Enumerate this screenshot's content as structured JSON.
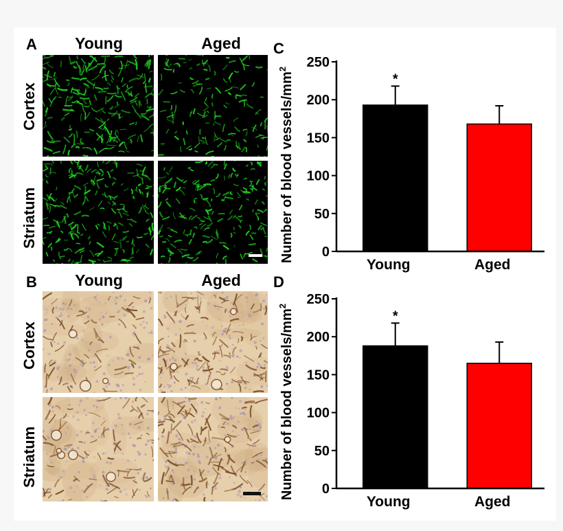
{
  "panels": {
    "a_letter": "A",
    "b_letter": "B",
    "c_letter": "C",
    "d_letter": "D"
  },
  "micrographs": {
    "col_young": "Young",
    "col_aged": "Aged",
    "row_cortex": "Cortex",
    "row_striatum": "Striatum",
    "fluor_color": "#1fd11f",
    "fluor_bg": "#000000",
    "stain_bg": "#e6cfab",
    "stain_vessel": "#7a4c26",
    "stain_nuclei": "#9f8fb0"
  },
  "chart_data": [
    {
      "type": "bar",
      "panel": "C",
      "categories": [
        "Young",
        "Aged"
      ],
      "values": [
        193,
        168
      ],
      "errors": [
        25,
        24
      ],
      "significance": [
        "*",
        ""
      ],
      "colors": [
        "#000000",
        "#ff0000"
      ],
      "ylabel": "Number of blood vessels/mm",
      "ylabel_sup": "2",
      "ylim": [
        0,
        250
      ],
      "yticks": [
        0,
        50,
        100,
        150,
        200,
        250
      ]
    },
    {
      "type": "bar",
      "panel": "D",
      "categories": [
        "Young",
        "Aged"
      ],
      "values": [
        188,
        165
      ],
      "errors": [
        30,
        28
      ],
      "significance": [
        "*",
        ""
      ],
      "colors": [
        "#000000",
        "#ff0000"
      ],
      "ylabel": "Number of blood vessels/mm",
      "ylabel_sup": "2",
      "ylim": [
        0,
        250
      ],
      "yticks": [
        0,
        50,
        100,
        150,
        200,
        250
      ]
    }
  ]
}
